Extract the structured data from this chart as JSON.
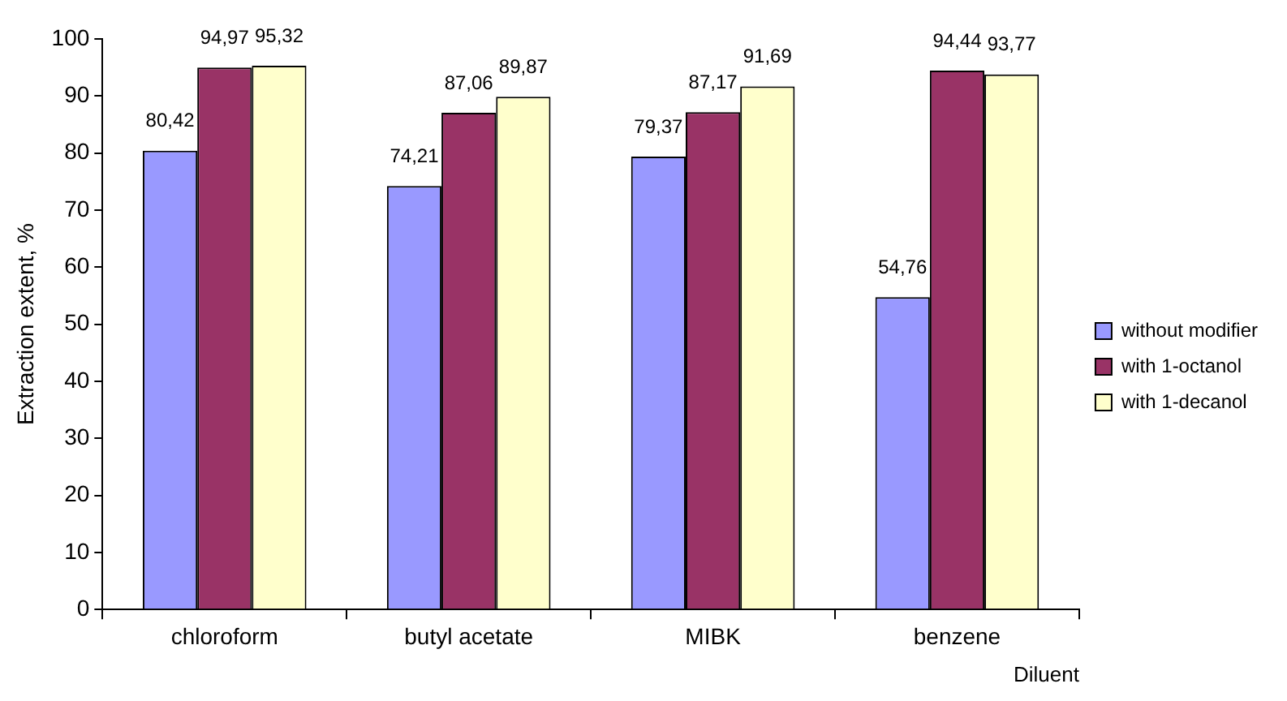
{
  "chart_data": {
    "type": "bar",
    "xlabel": "Diluent",
    "ylabel": "Extraction extent, %",
    "categories": [
      "chloroform",
      "butyl acetate",
      "MIBK",
      "benzene"
    ],
    "series": [
      {
        "name": "without modifier",
        "color": "#9999ff",
        "values": [
          80.42,
          74.21,
          79.37,
          54.76
        ],
        "value_labels": [
          "80,42",
          "74,21",
          "79,37",
          "54,76"
        ]
      },
      {
        "name": "with 1-octanol",
        "color": "#993366",
        "values": [
          94.97,
          87.06,
          87.17,
          94.44
        ],
        "value_labels": [
          "94,97",
          "87,06",
          "87,17",
          "94,44"
        ]
      },
      {
        "name": "with 1-decanol",
        "color": "#ffffcc",
        "values": [
          95.32,
          89.87,
          91.69,
          93.77
        ],
        "value_labels": [
          "95,32",
          "89,87",
          "91,69",
          "93,77"
        ]
      }
    ],
    "ylim": [
      0,
      100
    ],
    "yticks": [
      0,
      10,
      20,
      30,
      40,
      50,
      60,
      70,
      80,
      90,
      100
    ],
    "grid": false,
    "legend": "right"
  }
}
